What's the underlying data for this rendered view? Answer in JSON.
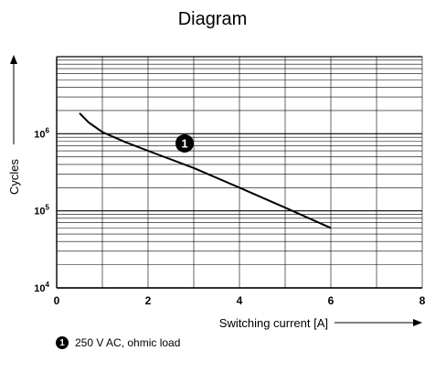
{
  "chart_data": {
    "type": "line",
    "title": "Diagram",
    "xlabel": "Switching current [A]",
    "ylabel": "Cycles",
    "xlim": [
      0,
      8
    ],
    "ylim": [
      10000,
      10000000
    ],
    "y_scale": "log",
    "grid": true,
    "x_ticks": [
      "0",
      "2",
      "4",
      "6",
      "8"
    ],
    "y_ticks": [
      {
        "base": "10",
        "exp": "4",
        "value": 10000
      },
      {
        "base": "10",
        "exp": "5",
        "value": 100000
      },
      {
        "base": "10",
        "exp": "6",
        "value": 1000000
      }
    ],
    "series": [
      {
        "marker": "1",
        "x": [
          0.5,
          0.7,
          1.0,
          1.5,
          2.0,
          3.0,
          4.0,
          5.0,
          6.0
        ],
        "y": [
          1850000,
          1400000,
          1050000,
          780000,
          600000,
          360000,
          200000,
          110000,
          60000
        ]
      }
    ],
    "legend": [
      {
        "marker": "1",
        "label": "250 V AC, ohmic load"
      }
    ]
  }
}
